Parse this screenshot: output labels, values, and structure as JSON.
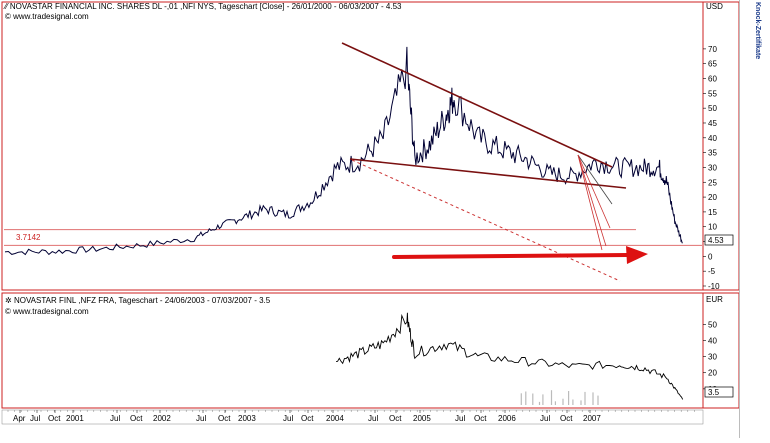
{
  "top_panel": {
    "title": "NOVASTAR FINANCIAL INC. SHARES DL -,01 ,NFI NYS, Tageschart [Close] - 26/01/2000 - 06/03/2007 - 4.53",
    "source": "www.tradesignal.com",
    "currency": "USD",
    "last_value_label": "4.53",
    "level_label": "3.7142",
    "y_ticks": [
      "70",
      "65",
      "60",
      "55",
      "50",
      "45",
      "40",
      "35",
      "30",
      "25",
      "20",
      "15",
      "10",
      "5",
      "0",
      "-5",
      "-10"
    ]
  },
  "bottom_panel": {
    "title": "NOVASTAR FINL      ,NFZ FRA, Tageschart - 24/06/2003 - 07/03/2007 - 3.5",
    "source": "www.tradesignal.com",
    "currency": "EUR",
    "last_value_label": "3.5",
    "y_ticks": [
      "50",
      "40",
      "30",
      "20",
      "10"
    ]
  },
  "side_label": "Knock-Zertifikate",
  "x_axis_labels": [
    "Apr",
    "Jul",
    "Oct",
    "2001",
    "Jul",
    "Oct",
    "2002",
    "Jul",
    "Oct",
    "2003",
    "Jul",
    "Oct",
    "2004",
    "Jul",
    "Oct",
    "2005",
    "Jul",
    "Oct",
    "2006",
    "Jul",
    "Oct",
    "2007"
  ],
  "colors": {
    "price": "#000033",
    "trend": "#7a1010",
    "arrow": "#dd1111",
    "hline": "#e07070",
    "frame": "#b71c1c"
  },
  "chart_data": [
    {
      "type": "line",
      "title": "NOVASTAR FINANCIAL INC. SHARES DL -,01 ,NFI NYS, Tageschart [Close] - 26/01/2000 - 06/03/2007 - 4.53",
      "ylabel": "USD",
      "ylim": [
        -10,
        73
      ],
      "x": [
        "2000-01",
        "2000-07",
        "2001-01",
        "2001-07",
        "2002-01",
        "2002-04",
        "2002-07",
        "2002-10",
        "2003-01",
        "2003-04",
        "2003-07",
        "2003-10",
        "2004-01",
        "2004-04",
        "2004-05",
        "2004-07",
        "2004-09",
        "2004-10",
        "2005-01",
        "2005-04",
        "2005-07",
        "2005-10",
        "2006-01",
        "2006-04",
        "2006-07",
        "2006-10",
        "2006-12",
        "2007-01",
        "2007-02",
        "2007-03"
      ],
      "series": [
        {
          "values": [
            1.5,
            1.6,
            2.5,
            4.0,
            6.0,
            10.0,
            13.0,
            16.0,
            14.0,
            19.0,
            30.0,
            32.0,
            40.0,
            64.0,
            33.0,
            38.0,
            48.0,
            54.0,
            40.0,
            36.0,
            33.0,
            28.0,
            27.0,
            32.0,
            30.0,
            30.0,
            30.0,
            25.0,
            12.0,
            4.53
          ]
        }
      ],
      "horizontal_lines": [
        3.7142,
        9.0
      ],
      "annotations": [
        "3.7142",
        "4.53"
      ]
    },
    {
      "type": "line",
      "title": "NOVASTAR FINL      ,NFZ FRA, Tageschart - 24/06/2003 - 07/03/2007 - 3.5",
      "ylabel": "EUR",
      "ylim": [
        0,
        57
      ],
      "x": [
        "2003-07",
        "2003-10",
        "2004-01",
        "2004-04",
        "2004-05",
        "2004-09",
        "2005-01",
        "2005-07",
        "2006-01",
        "2006-07",
        "2006-10",
        "2007-01",
        "2007-03"
      ],
      "series": [
        {
          "values": [
            27,
            32,
            38,
            54,
            32,
            38,
            30,
            27,
            24,
            25,
            23,
            17,
            3.5
          ]
        }
      ]
    }
  ]
}
